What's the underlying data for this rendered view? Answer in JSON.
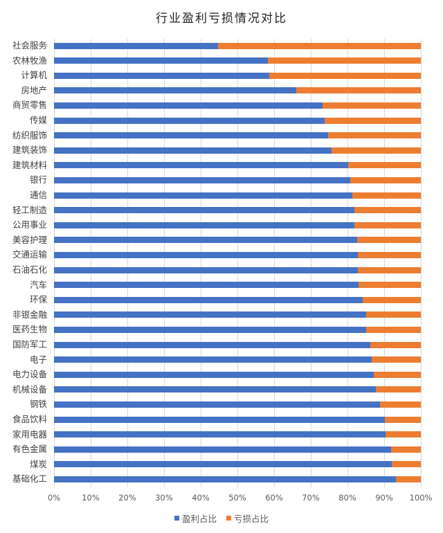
{
  "title": "行业盈利亏损情况对比",
  "colors": {
    "profit": "#4472C4",
    "loss": "#ED7D31",
    "grid": "#D9D9D9"
  },
  "legend": [
    {
      "label": "盈利占比",
      "color": "#4472C4"
    },
    {
      "label": "亏损占比",
      "color": "#ED7D31"
    }
  ],
  "x_ticks": [
    "0%",
    "10%",
    "20%",
    "30%",
    "40%",
    "50%",
    "60%",
    "70%",
    "80%",
    "90%",
    "100%"
  ],
  "chart_data": {
    "type": "bar",
    "orientation": "horizontal",
    "stacked": "percent",
    "title": "行业盈利亏损情况对比",
    "xlabel": "",
    "ylabel": "",
    "xlim": [
      0,
      100
    ],
    "grid": true,
    "legend_position": "bottom",
    "categories": [
      "社会服务",
      "农林牧渔",
      "计算机",
      "房地产",
      "商贸零售",
      "传媒",
      "纺织服饰",
      "建筑装饰",
      "建筑材料",
      "银行",
      "通信",
      "轻工制造",
      "公用事业",
      "美容护理",
      "交通运输",
      "石油石化",
      "汽车",
      "环保",
      "非银金融",
      "医药生物",
      "国防军工",
      "电子",
      "电力设备",
      "机械设备",
      "钢铁",
      "食品饮料",
      "家用电器",
      "有色金属",
      "煤炭",
      "基础化工"
    ],
    "series": [
      {
        "name": "盈利占比",
        "color": "#4472C4",
        "values": [
          44.7,
          58.3,
          58.6,
          66.1,
          73.2,
          73.8,
          74.7,
          75.7,
          80.2,
          80.7,
          81.4,
          81.9,
          81.9,
          82.7,
          82.9,
          82.9,
          83.1,
          84.1,
          85.0,
          85.1,
          86.2,
          86.6,
          87.2,
          87.7,
          88.8,
          90.1,
          90.4,
          91.9,
          92.1,
          93.2
        ]
      },
      {
        "name": "亏损占比",
        "color": "#ED7D31",
        "values": [
          55.3,
          41.7,
          41.4,
          33.9,
          26.8,
          26.2,
          25.3,
          24.3,
          19.8,
          19.3,
          18.6,
          18.1,
          18.1,
          17.3,
          17.1,
          17.1,
          16.9,
          15.9,
          15.0,
          14.9,
          13.8,
          13.4,
          12.8,
          12.3,
          11.2,
          9.9,
          9.6,
          8.1,
          7.9,
          6.8
        ]
      }
    ]
  }
}
